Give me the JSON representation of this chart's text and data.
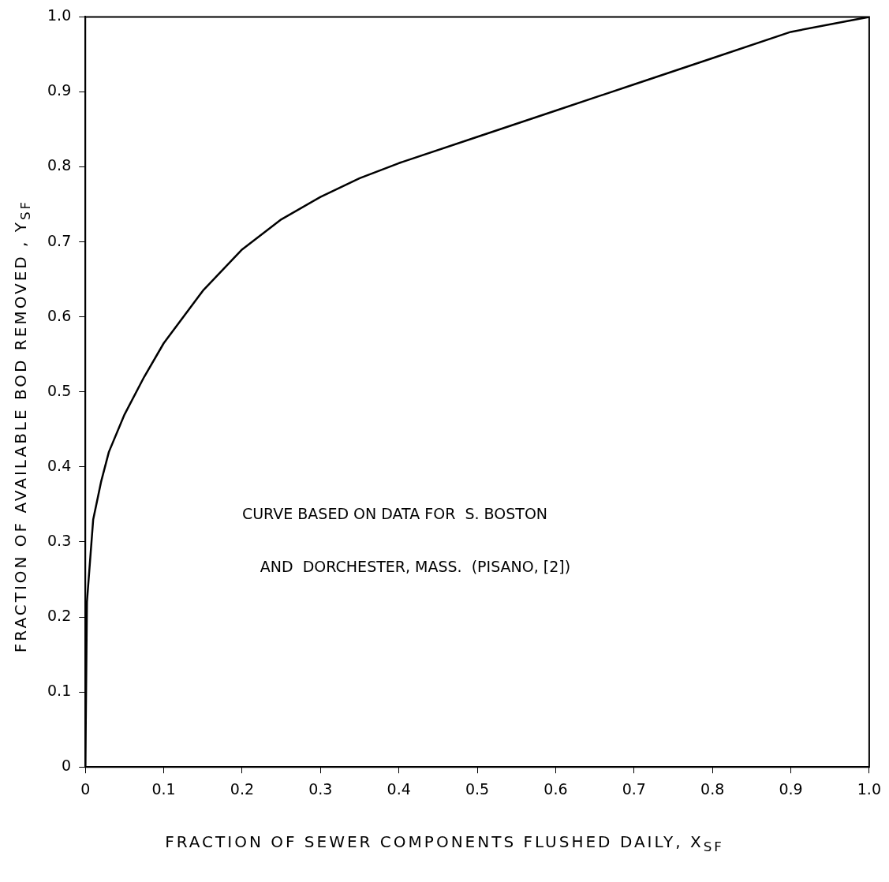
{
  "chart_data": {
    "type": "line",
    "xlabel": "FRACTION OF SEWER COMPONENTS FLUSHED DAILY, X$_{SF}$",
    "ylabel": "FRACTION OF AVAILABLE BOD REMOVED , Y$_{SF}$",
    "x": [
      0,
      0.002,
      0.01,
      0.02,
      0.03,
      0.05,
      0.075,
      0.1,
      0.15,
      0.2,
      0.25,
      0.3,
      0.35,
      0.4,
      0.5,
      0.6,
      0.7,
      0.8,
      0.9,
      1.0
    ],
    "series": [
      {
        "color": "#000000",
        "values": [
          0,
          0.22,
          0.33,
          0.38,
          0.42,
          0.47,
          0.52,
          0.565,
          0.635,
          0.69,
          0.73,
          0.76,
          0.785,
          0.805,
          0.84,
          0.875,
          0.91,
          0.945,
          0.98,
          1.0
        ]
      }
    ],
    "xlim": [
      0,
      1
    ],
    "ylim": [
      0,
      1
    ],
    "xticks": [
      0,
      0.1,
      0.2,
      0.3,
      0.4,
      0.5,
      0.6,
      0.7,
      0.8,
      0.9,
      {
        "value": 1,
        "label": "1.0"
      }
    ],
    "yticks": [
      0,
      0.1,
      0.2,
      0.3,
      0.4,
      0.5,
      0.6,
      0.7,
      0.8,
      0.9,
      {
        "value": 1,
        "label": "1.0"
      }
    ],
    "grid": false,
    "legend": false,
    "marker": "none",
    "line_style": "solid",
    "annotations": [
      "CURVE BASED ON DATA FOR  S. BOSTON",
      "AND  DORCHESTER, MASS.  (PISANO, [2])"
    ]
  }
}
